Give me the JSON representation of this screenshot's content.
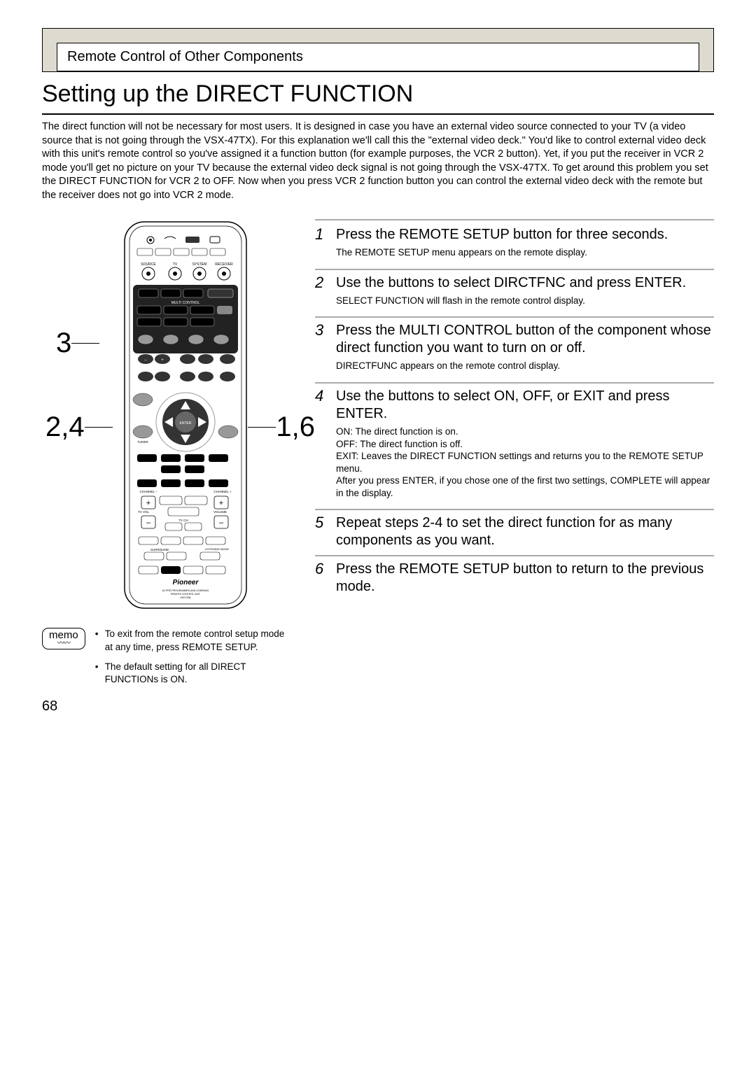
{
  "header": {
    "section_label": "Remote Control of Other Components"
  },
  "title": "Setting up the DIRECT FUNCTION",
  "intro": "The direct function will not be necessary for most users. It is designed in case you have an external video source connected to your TV (a video source that is not going through the VSX-47TX). For this explanation we'll call this the \"external video deck.\" You'd like to control external video deck with this unit's remote control so you've assigned it a function button (for example purposes, the VCR 2 button). Yet, if you put the receiver in VCR 2 mode you'll get no picture on your TV because the external video deck signal is not going through the VSX-47TX. To get around this problem you set the DIRECT FUNCTION for VCR 2 to OFF. Now when you press VCR 2 function button you can control the external video deck with the remote but the receiver does not go into VCR 2 mode.",
  "callouts": {
    "c3": "3",
    "c24": "2,4",
    "c16": "1,6"
  },
  "steps": [
    {
      "num": "1",
      "title": "Press the REMOTE SETUP button for three seconds.",
      "detail": "The REMOTE SETUP menu appears on the remote display."
    },
    {
      "num": "2",
      "title": "Use the        buttons to select DIRCTFNC and press ENTER.",
      "detail": "SELECT FUNCTION will flash in the remote control display."
    },
    {
      "num": "3",
      "title": "Press the MULTI CONTROL button of the component whose direct function you want to turn on or off.",
      "detail": "DIRECTFUNC appears on the remote control display."
    },
    {
      "num": "4",
      "title": "Use the        buttons to select ON, OFF, or EXIT and press ENTER.",
      "detail": "ON: The direct function is on.\nOFF: The direct function is off.\nEXIT:  Leaves the DIRECT FUNCTION settings and returns you to the REMOTE SETUP menu.\nAfter you  press ENTER, if you chose one of the first two settings, COMPLETE will appear in the display."
    },
    {
      "num": "5",
      "title": "Repeat steps 2-4 to set the direct function for as many components as you want.",
      "detail": ""
    },
    {
      "num": "6",
      "title": "Press the REMOTE SETUP button to return to the previous mode.",
      "detail": ""
    }
  ],
  "memo": {
    "label": "memo",
    "items": [
      "To exit from the remote control setup mode at any time, press REMOTE SETUP.",
      "The default setting for all DIRECT FUNCTIONs is ON."
    ]
  },
  "page_number": "68",
  "styling": {
    "outer_bg": "#dddad0",
    "body_bg": "#ffffff",
    "title_fontsize": 34,
    "step_title_fontsize": 20,
    "step_detail_fontsize": 13.5,
    "intro_fontsize": 14.5,
    "rule_color": "#aaaaaa",
    "border_color": "#000000"
  },
  "remote": {
    "brand_text": "Pioneer",
    "subtext1": "AV PRE-PROGRAMMED AND LEARNING",
    "subtext2": "REMOTE CONTROL UNIT",
    "model": "AXD7265",
    "label_source": "SOURCE",
    "label_tv": "TV",
    "label_system": "SYSTEM",
    "label_receiver": "RECEIVER",
    "label_multi": "MULTI CONTROL",
    "label_enter": "ENTER",
    "label_tuner": "TUNER",
    "label_volume": "VOLUME",
    "label_tvvol": "TV VOL",
    "label_tvch": "TV CH",
    "label_channel_minus": "CHANNEL –",
    "label_channel_plus": "CHANNEL +",
    "label_surround": "SURROUND",
    "label_listening": "LISTENING MODE"
  }
}
